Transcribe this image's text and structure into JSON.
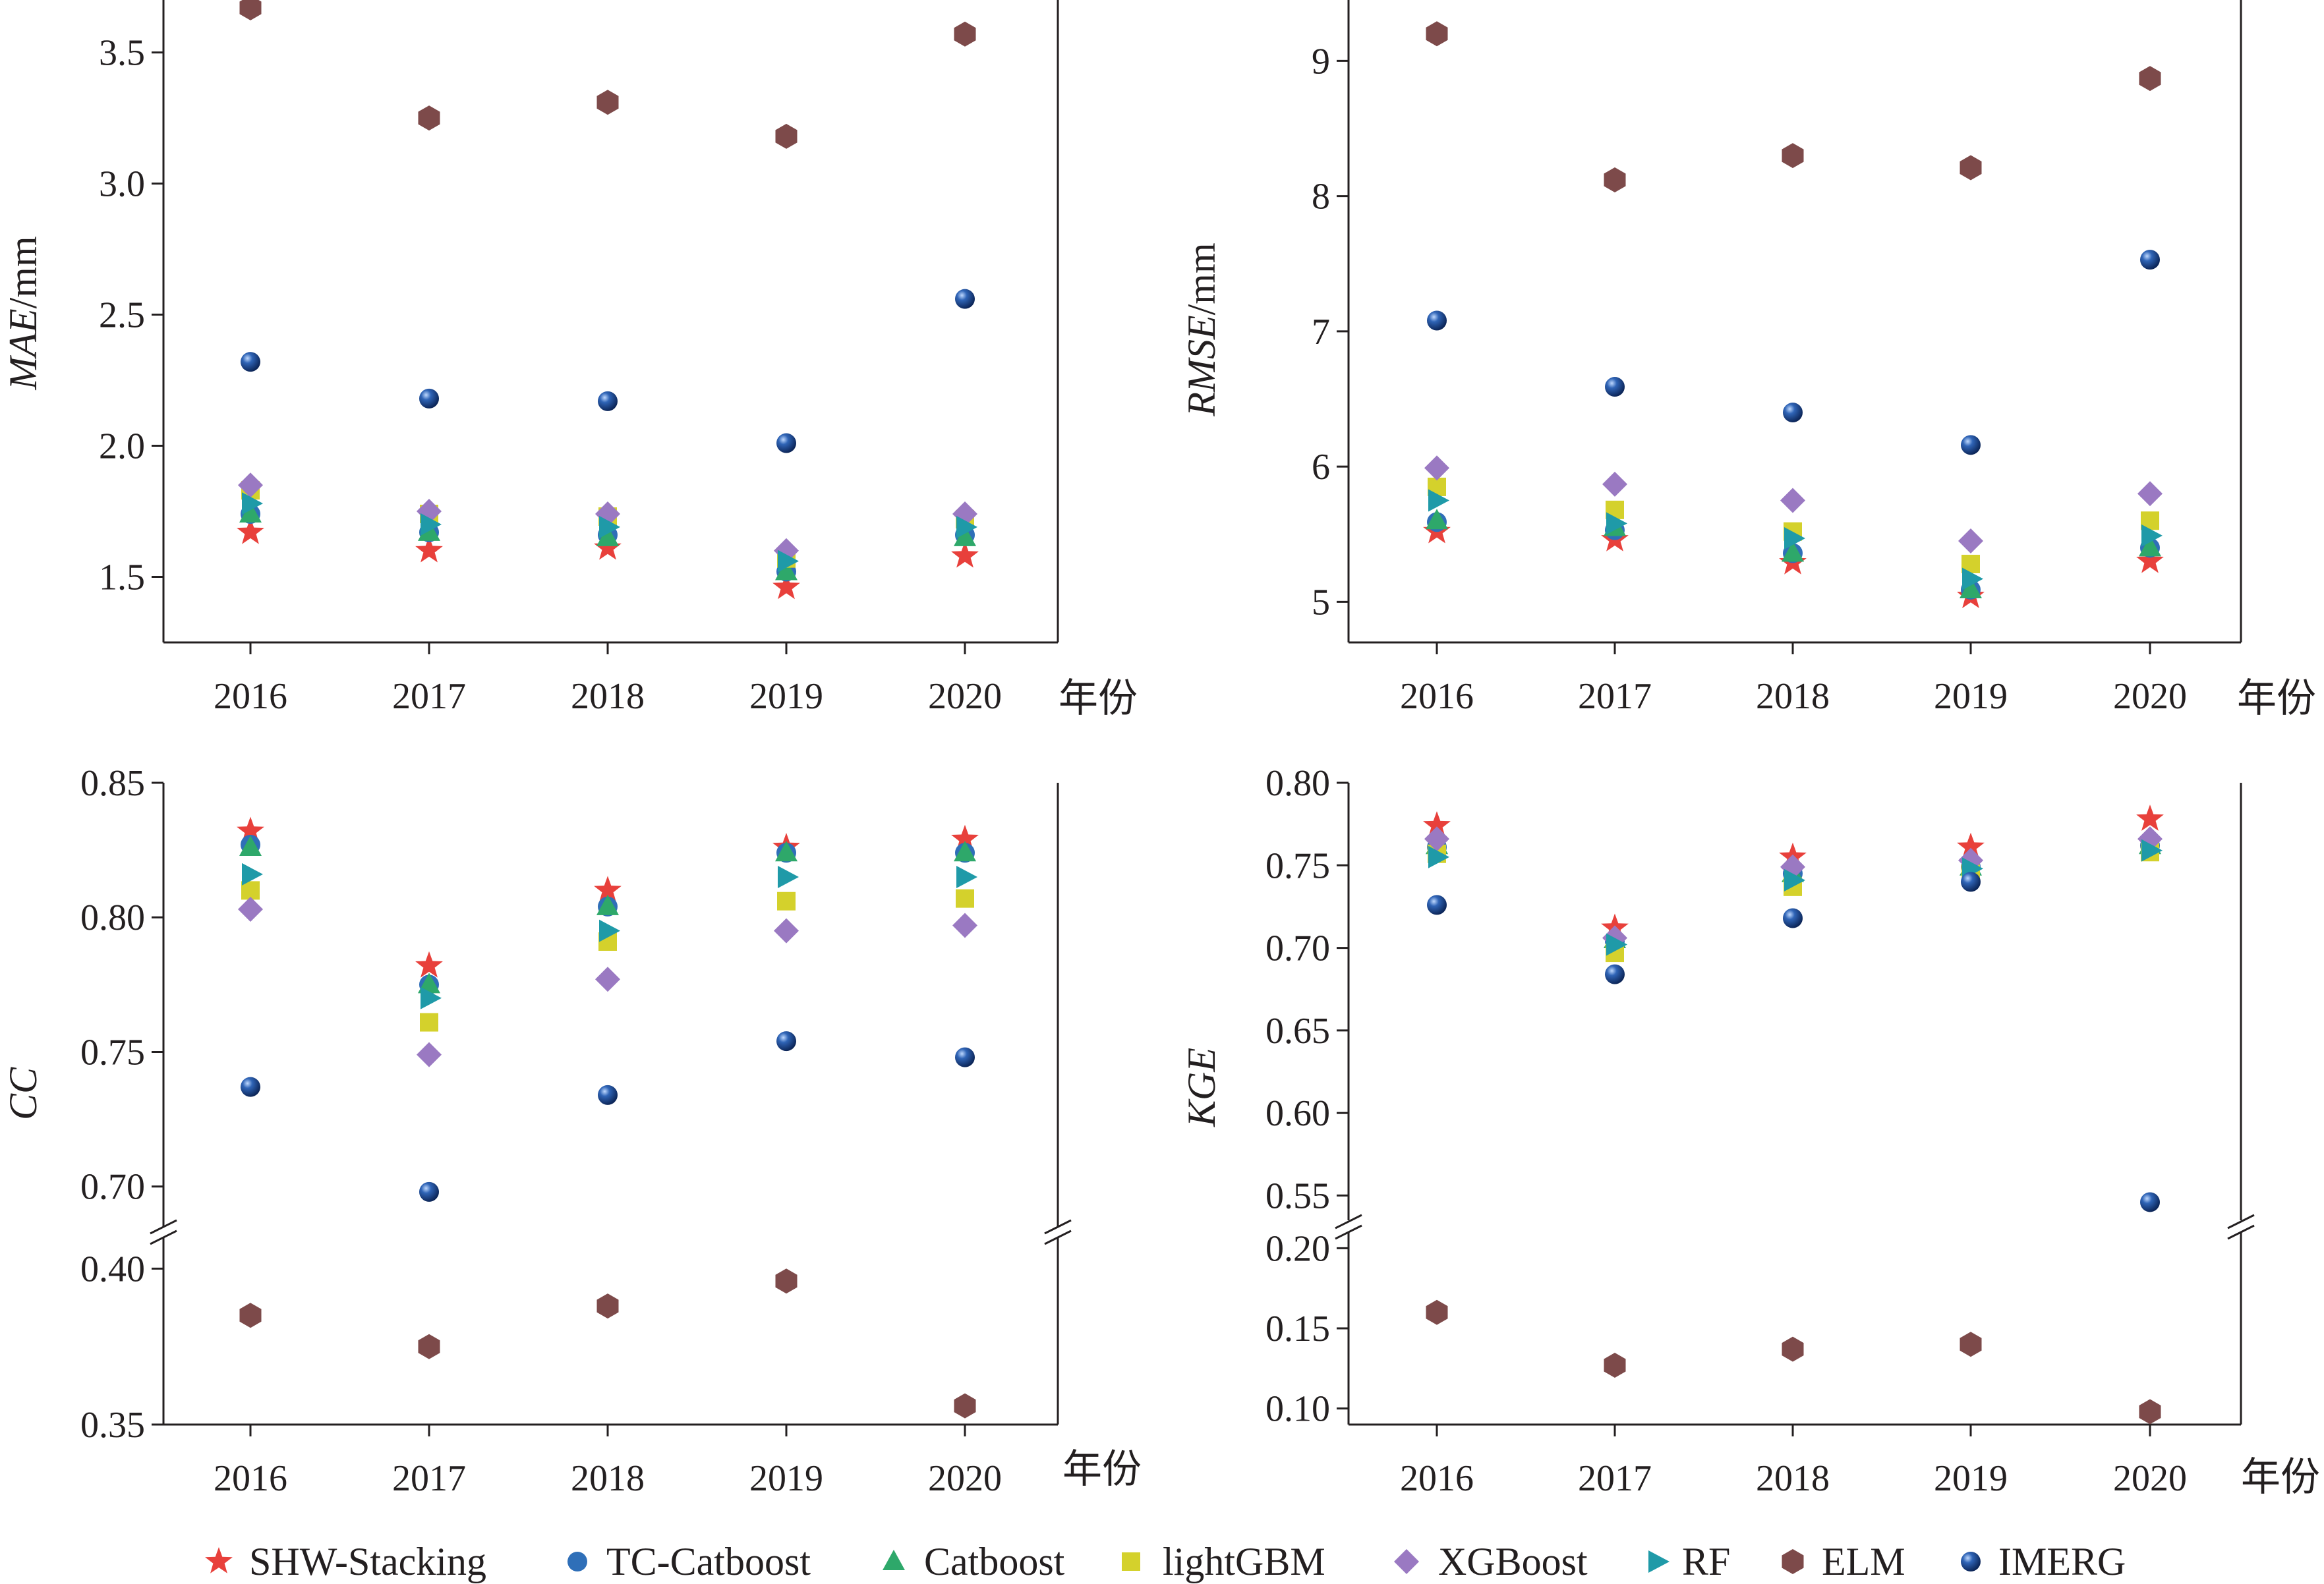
{
  "colors": {
    "SHW-Stacking": "#e8403b",
    "TC-Catboost": "#2f6fb8",
    "Catboost": "#2ea86a",
    "lightGBM": "#d4d12c",
    "XGBoost": "#9a79c2",
    "RF": "#1f9aa8",
    "ELM": "#7d4a4a",
    "IMERG": "#123f8c"
  },
  "legend": [
    {
      "name": "SHW-Stacking",
      "marker": "star"
    },
    {
      "name": "TC-Catboost",
      "marker": "circle"
    },
    {
      "name": "Catboost",
      "marker": "triangle"
    },
    {
      "name": "lightGBM",
      "marker": "square"
    },
    {
      "name": "XGBoost",
      "marker": "diamond"
    },
    {
      "name": "RF",
      "marker": "triangle-right"
    },
    {
      "name": "ELM",
      "marker": "hexagon"
    },
    {
      "name": "IMERG",
      "marker": "sphere"
    }
  ],
  "chart_data": [
    {
      "type": "scatter",
      "title": "",
      "ylabel_italic": "MAE",
      "ylabel_unit": "/mm",
      "xlabel": "年份",
      "categories": [
        "2016",
        "2017",
        "2018",
        "2019",
        "2020"
      ],
      "ylim": [
        1.25,
        3.7
      ],
      "yticks": [
        "1.5",
        "2.0",
        "2.5",
        "3.0",
        "3.5"
      ],
      "series": [
        {
          "name": "SHW-Stacking",
          "values": [
            1.67,
            1.6,
            1.61,
            1.46,
            1.58
          ]
        },
        {
          "name": "TC-Catboost",
          "values": [
            1.74,
            1.67,
            1.66,
            1.52,
            1.66
          ]
        },
        {
          "name": "Catboost",
          "values": [
            1.74,
            1.67,
            1.65,
            1.52,
            1.65
          ]
        },
        {
          "name": "lightGBM",
          "values": [
            1.83,
            1.74,
            1.73,
            1.57,
            1.72
          ]
        },
        {
          "name": "XGBoost",
          "values": [
            1.85,
            1.75,
            1.74,
            1.6,
            1.74
          ]
        },
        {
          "name": "RF",
          "values": [
            1.78,
            1.7,
            1.69,
            1.56,
            1.69
          ]
        },
        {
          "name": "ELM",
          "values": [
            3.67,
            3.25,
            3.31,
            3.18,
            3.57
          ]
        },
        {
          "name": "IMERG",
          "values": [
            2.32,
            2.18,
            2.17,
            2.01,
            2.56
          ]
        }
      ]
    },
    {
      "type": "scatter",
      "title": "",
      "ylabel_italic": "RMSE",
      "ylabel_unit": "/mm",
      "xlabel": "年份",
      "categories": [
        "2016",
        "2017",
        "2018",
        "2019",
        "2020"
      ],
      "ylim": [
        4.7,
        9.45
      ],
      "yticks": [
        "5",
        "6",
        "7",
        "8",
        "9"
      ],
      "series": [
        {
          "name": "SHW-Stacking",
          "values": [
            5.52,
            5.46,
            5.29,
            5.04,
            5.3
          ]
        },
        {
          "name": "TC-Catboost",
          "values": [
            5.59,
            5.53,
            5.36,
            5.09,
            5.4
          ]
        },
        {
          "name": "Catboost",
          "values": [
            5.6,
            5.55,
            5.36,
            5.09,
            5.4
          ]
        },
        {
          "name": "lightGBM",
          "values": [
            5.85,
            5.68,
            5.52,
            5.28,
            5.6
          ]
        },
        {
          "name": "XGBoost",
          "values": [
            5.99,
            5.87,
            5.75,
            5.45,
            5.8
          ]
        },
        {
          "name": "RF",
          "values": [
            5.75,
            5.58,
            5.47,
            5.17,
            5.49
          ]
        },
        {
          "name": "ELM",
          "values": [
            9.2,
            8.12,
            8.3,
            8.21,
            8.87
          ]
        },
        {
          "name": "IMERG",
          "values": [
            7.08,
            6.59,
            6.4,
            6.16,
            7.53
          ]
        }
      ]
    },
    {
      "type": "scatter",
      "title": "",
      "ylabel_italic": "CC",
      "ylabel_unit": "",
      "xlabel": "年份",
      "categories": [
        "2016",
        "2017",
        "2018",
        "2019",
        "2020"
      ],
      "broken_axis": true,
      "ylim_upper": [
        0.685,
        0.85
      ],
      "yticks_upper": [
        "0.70",
        "0.75",
        "0.80",
        "0.85"
      ],
      "ylim_lower": [
        0.35,
        0.41
      ],
      "yticks_lower": [
        "0.35",
        "0.40"
      ],
      "series": [
        {
          "name": "SHW-Stacking",
          "values": [
            0.832,
            0.782,
            0.81,
            0.826,
            0.829
          ]
        },
        {
          "name": "TC-Catboost",
          "values": [
            0.827,
            0.775,
            0.804,
            0.824,
            0.824
          ]
        },
        {
          "name": "Catboost",
          "values": [
            0.826,
            0.775,
            0.804,
            0.824,
            0.824
          ]
        },
        {
          "name": "lightGBM",
          "values": [
            0.81,
            0.761,
            0.791,
            0.806,
            0.807
          ]
        },
        {
          "name": "XGBoost",
          "values": [
            0.803,
            0.749,
            0.777,
            0.795,
            0.797
          ]
        },
        {
          "name": "RF",
          "values": [
            0.816,
            0.77,
            0.795,
            0.815,
            0.815
          ]
        },
        {
          "name": "ELM",
          "values": [
            0.385,
            0.375,
            0.388,
            0.396,
            0.356
          ]
        },
        {
          "name": "IMERG",
          "values": [
            0.737,
            0.698,
            0.734,
            0.754,
            0.748
          ]
        }
      ]
    },
    {
      "type": "scatter",
      "title": "",
      "ylabel_italic": "KGE",
      "ylabel_unit": "",
      "xlabel": "年份",
      "categories": [
        "2016",
        "2017",
        "2018",
        "2019",
        "2020"
      ],
      "broken_axis": true,
      "ylim_upper": [
        0.535,
        0.8
      ],
      "yticks_upper": [
        "0.55",
        "0.60",
        "0.65",
        "0.70",
        "0.75",
        "0.80"
      ],
      "ylim_lower": [
        0.09,
        0.21
      ],
      "yticks_lower": [
        "0.10",
        "0.15",
        "0.20"
      ],
      "series": [
        {
          "name": "SHW-Stacking",
          "values": [
            0.774,
            0.712,
            0.755,
            0.761,
            0.778
          ]
        },
        {
          "name": "TC-Catboost",
          "values": [
            0.761,
            0.704,
            0.745,
            0.749,
            0.762
          ]
        },
        {
          "name": "Catboost",
          "values": [
            0.762,
            0.705,
            0.745,
            0.749,
            0.762
          ]
        },
        {
          "name": "lightGBM",
          "values": [
            0.757,
            0.697,
            0.737,
            0.745,
            0.758
          ]
        },
        {
          "name": "XGBoost",
          "values": [
            0.766,
            0.706,
            0.749,
            0.753,
            0.766
          ]
        },
        {
          "name": "RF",
          "values": [
            0.755,
            0.702,
            0.741,
            0.748,
            0.759
          ]
        },
        {
          "name": "ELM",
          "values": [
            0.16,
            0.127,
            0.137,
            0.14,
            0.098
          ]
        },
        {
          "name": "IMERG",
          "values": [
            0.726,
            0.684,
            0.718,
            0.74,
            0.546
          ]
        }
      ]
    }
  ]
}
